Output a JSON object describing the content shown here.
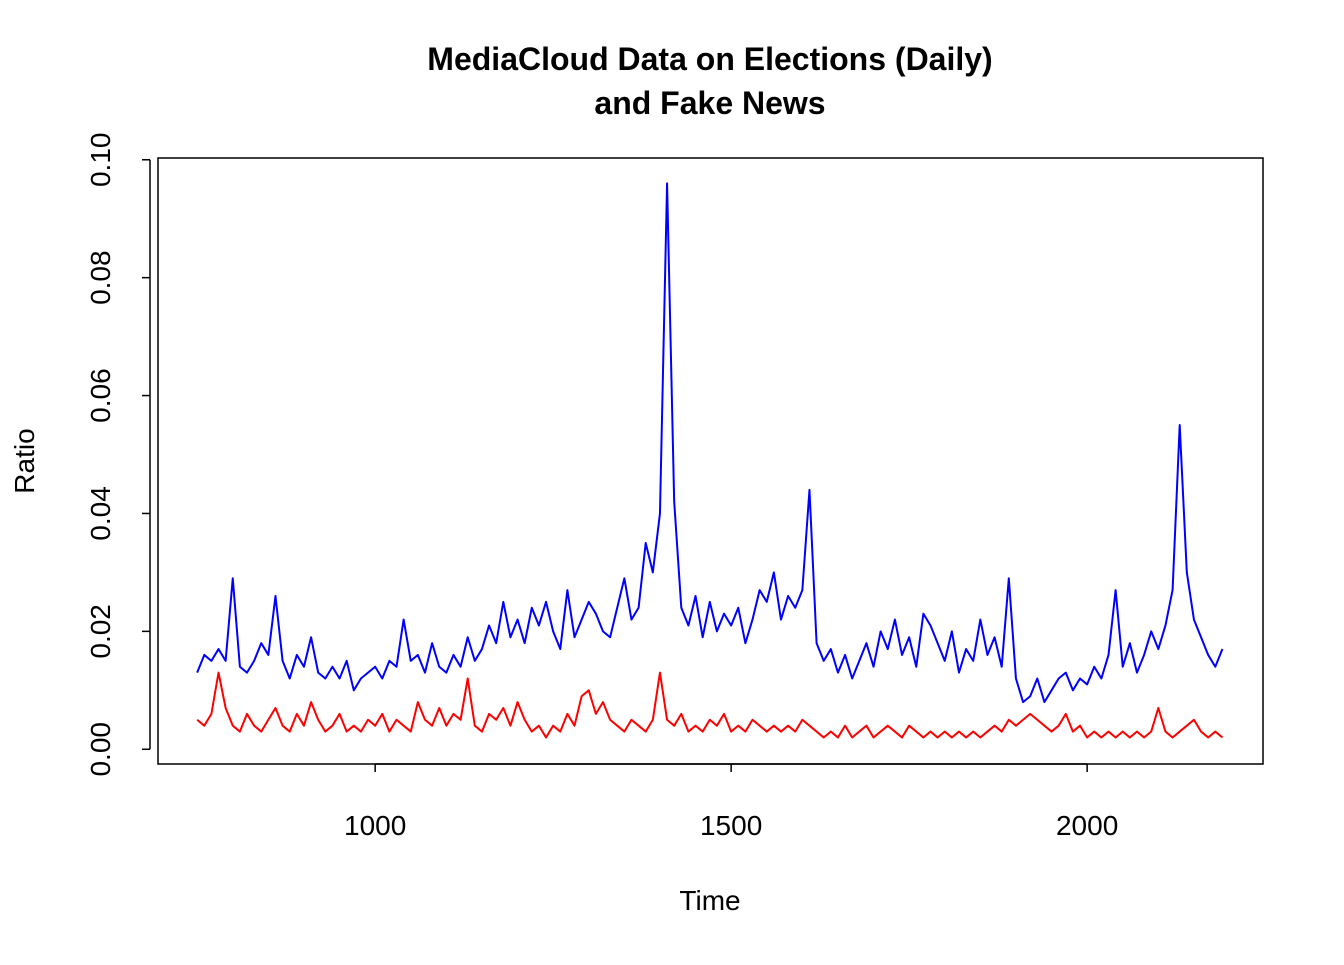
{
  "chart_data": {
    "type": "line",
    "title": [
      "MediaCloud Data on Elections (Daily)",
      "and Fake News"
    ],
    "x_label": "Time",
    "y_label": "Ratio",
    "x": [
      750,
      760,
      770,
      780,
      790,
      800,
      810,
      820,
      830,
      840,
      850,
      860,
      870,
      880,
      890,
      900,
      910,
      920,
      930,
      940,
      950,
      960,
      970,
      980,
      990,
      1000,
      1010,
      1020,
      1030,
      1040,
      1050,
      1060,
      1070,
      1080,
      1090,
      1100,
      1110,
      1120,
      1130,
      1140,
      1150,
      1160,
      1170,
      1180,
      1190,
      1200,
      1210,
      1220,
      1230,
      1240,
      1250,
      1260,
      1270,
      1280,
      1290,
      1300,
      1310,
      1320,
      1330,
      1340,
      1350,
      1360,
      1370,
      1380,
      1390,
      1400,
      1410,
      1420,
      1430,
      1440,
      1450,
      1460,
      1470,
      1480,
      1490,
      1500,
      1510,
      1520,
      1530,
      1540,
      1550,
      1560,
      1570,
      1580,
      1590,
      1600,
      1610,
      1620,
      1630,
      1640,
      1650,
      1660,
      1670,
      1680,
      1690,
      1700,
      1710,
      1720,
      1730,
      1740,
      1750,
      1760,
      1770,
      1780,
      1790,
      1800,
      1810,
      1820,
      1830,
      1840,
      1850,
      1860,
      1870,
      1880,
      1890,
      1900,
      1910,
      1920,
      1930,
      1940,
      1950,
      1960,
      1970,
      1980,
      1990,
      2000,
      2010,
      2020,
      2030,
      2040,
      2050,
      2060,
      2070,
      2080,
      2090,
      2100,
      2110,
      2120,
      2130,
      2140,
      2150,
      2160,
      2170,
      2180,
      2190
    ],
    "series": [
      {
        "color": "#0000ff",
        "values": [
          0.013,
          0.016,
          0.015,
          0.017,
          0.015,
          0.029,
          0.014,
          0.013,
          0.015,
          0.018,
          0.016,
          0.026,
          0.015,
          0.012,
          0.016,
          0.014,
          0.019,
          0.013,
          0.012,
          0.014,
          0.012,
          0.015,
          0.01,
          0.012,
          0.013,
          0.014,
          0.012,
          0.015,
          0.014,
          0.022,
          0.015,
          0.016,
          0.013,
          0.018,
          0.014,
          0.013,
          0.016,
          0.014,
          0.019,
          0.015,
          0.017,
          0.021,
          0.018,
          0.025,
          0.019,
          0.022,
          0.018,
          0.024,
          0.021,
          0.025,
          0.02,
          0.017,
          0.027,
          0.019,
          0.022,
          0.025,
          0.023,
          0.02,
          0.019,
          0.024,
          0.029,
          0.022,
          0.024,
          0.035,
          0.03,
          0.04,
          0.096,
          0.042,
          0.024,
          0.021,
          0.026,
          0.019,
          0.025,
          0.02,
          0.023,
          0.021,
          0.024,
          0.018,
          0.022,
          0.027,
          0.025,
          0.03,
          0.022,
          0.026,
          0.024,
          0.027,
          0.044,
          0.018,
          0.015,
          0.017,
          0.013,
          0.016,
          0.012,
          0.015,
          0.018,
          0.014,
          0.02,
          0.017,
          0.022,
          0.016,
          0.019,
          0.014,
          0.023,
          0.021,
          0.018,
          0.015,
          0.02,
          0.013,
          0.017,
          0.015,
          0.022,
          0.016,
          0.019,
          0.014,
          0.029,
          0.012,
          0.008,
          0.009,
          0.012,
          0.008,
          0.01,
          0.012,
          0.013,
          0.01,
          0.012,
          0.011,
          0.014,
          0.012,
          0.016,
          0.027,
          0.014,
          0.018,
          0.013,
          0.016,
          0.02,
          0.017,
          0.021,
          0.027,
          0.055,
          0.03,
          0.022,
          0.019,
          0.016,
          0.014,
          0.017
        ]
      },
      {
        "color": "#ff0000",
        "values": [
          0.005,
          0.004,
          0.006,
          0.013,
          0.007,
          0.004,
          0.003,
          0.006,
          0.004,
          0.003,
          0.005,
          0.007,
          0.004,
          0.003,
          0.006,
          0.004,
          0.008,
          0.005,
          0.003,
          0.004,
          0.006,
          0.003,
          0.004,
          0.003,
          0.005,
          0.004,
          0.006,
          0.003,
          0.005,
          0.004,
          0.003,
          0.008,
          0.005,
          0.004,
          0.007,
          0.004,
          0.006,
          0.005,
          0.012,
          0.004,
          0.003,
          0.006,
          0.005,
          0.007,
          0.004,
          0.008,
          0.005,
          0.003,
          0.004,
          0.002,
          0.004,
          0.003,
          0.006,
          0.004,
          0.009,
          0.01,
          0.006,
          0.008,
          0.005,
          0.004,
          0.003,
          0.005,
          0.004,
          0.003,
          0.005,
          0.013,
          0.005,
          0.004,
          0.006,
          0.003,
          0.004,
          0.003,
          0.005,
          0.004,
          0.006,
          0.003,
          0.004,
          0.003,
          0.005,
          0.004,
          0.003,
          0.004,
          0.003,
          0.004,
          0.003,
          0.005,
          0.004,
          0.003,
          0.002,
          0.003,
          0.002,
          0.004,
          0.002,
          0.003,
          0.004,
          0.002,
          0.003,
          0.004,
          0.003,
          0.002,
          0.004,
          0.003,
          0.002,
          0.003,
          0.002,
          0.003,
          0.002,
          0.003,
          0.002,
          0.003,
          0.002,
          0.003,
          0.004,
          0.003,
          0.005,
          0.004,
          0.005,
          0.006,
          0.005,
          0.004,
          0.003,
          0.004,
          0.006,
          0.003,
          0.004,
          0.002,
          0.003,
          0.002,
          0.003,
          0.002,
          0.003,
          0.002,
          0.003,
          0.002,
          0.003,
          0.007,
          0.003,
          0.002,
          0.003,
          0.004,
          0.005,
          0.003,
          0.002,
          0.003,
          0.002
        ]
      }
    ],
    "xlim": [
      695,
      2247
    ],
    "ylim": [
      -0.0025,
      0.1003
    ],
    "xticks": [
      1000,
      1500,
      2000
    ],
    "yticks": [
      {
        "value": 0,
        "label": "0.00"
      },
      0.02,
      0.04,
      0.06,
      0.08,
      {
        "value": 0.1,
        "label": "0.10"
      }
    ]
  }
}
